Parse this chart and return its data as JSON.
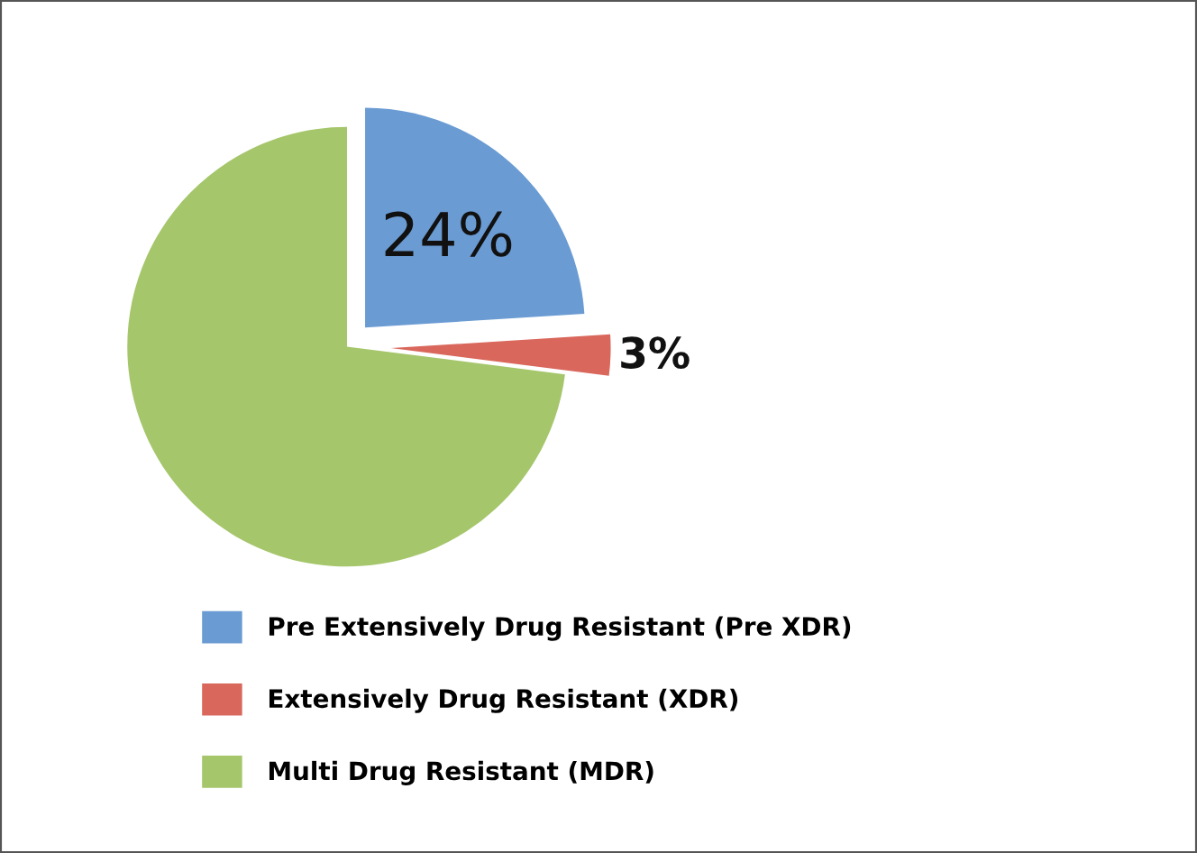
{
  "chart_data": {
    "type": "pie",
    "categories": [
      "Pre Extensively Drug Resistant (Pre XDR)",
      "Extensively Drug Resistant (XDR)",
      "Multi Drug Resistant (MDR)"
    ],
    "values": [
      24,
      3,
      73
    ],
    "colors": [
      "#6a9bd3",
      "#d9675c",
      "#a5c66b"
    ],
    "value_labels": [
      "24%",
      "3%",
      null
    ],
    "legend": "bottom"
  }
}
